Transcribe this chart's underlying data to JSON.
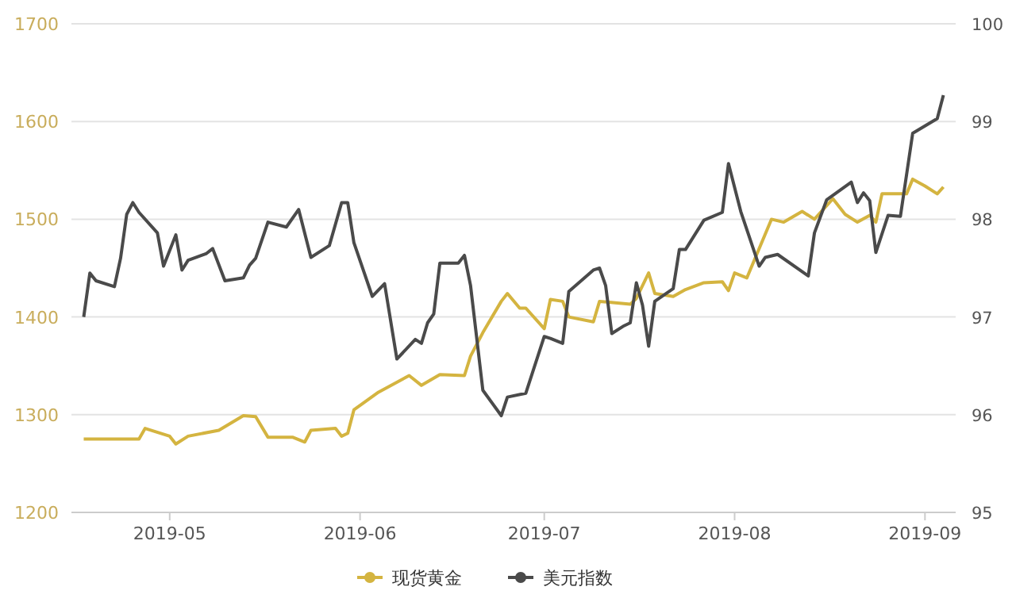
{
  "chart_data": {
    "type": "line",
    "legend": "bottom",
    "grid": "y",
    "xlim": [
      "2019-04-15",
      "2019-09-06"
    ],
    "xticks": [
      {
        "value": "2019-05-01",
        "label": "2019-05"
      },
      {
        "value": "2019-06-01",
        "label": "2019-06"
      },
      {
        "value": "2019-07-01",
        "label": "2019-07"
      },
      {
        "value": "2019-08-01",
        "label": "2019-08"
      },
      {
        "value": "2019-09-01",
        "label": "2019-09"
      }
    ],
    "ylim": [
      1200,
      1700
    ],
    "yticks": [
      1200,
      1300,
      1400,
      1500,
      1600,
      1700
    ],
    "y2lim": [
      95,
      100
    ],
    "y2ticks": [
      95,
      96,
      97,
      98,
      99,
      100
    ],
    "marker": "none",
    "line_style": "solid",
    "series": [
      {
        "name": "现货黄金",
        "color": "#d4b440",
        "x": [
          "2019-04-17",
          "2019-04-22",
          "2019-04-26",
          "2019-04-27",
          "2019-05-01",
          "2019-05-02",
          "2019-05-04",
          "2019-05-09",
          "2019-05-13",
          "2019-05-15",
          "2019-05-17",
          "2019-05-21",
          "2019-05-23",
          "2019-05-24",
          "2019-05-28",
          "2019-05-29",
          "2019-05-30",
          "2019-05-31",
          "2019-06-04",
          "2019-06-09",
          "2019-06-11",
          "2019-06-14",
          "2019-06-18",
          "2019-06-19",
          "2019-06-21",
          "2019-06-24",
          "2019-06-25",
          "2019-06-27",
          "2019-06-28",
          "2019-07-01",
          "2019-07-02",
          "2019-07-04",
          "2019-07-05",
          "2019-07-09",
          "2019-07-10",
          "2019-07-15",
          "2019-07-16",
          "2019-07-18",
          "2019-07-19",
          "2019-07-22",
          "2019-07-24",
          "2019-07-27",
          "2019-07-30",
          "2019-07-31",
          "2019-08-01",
          "2019-08-03",
          "2019-08-07",
          "2019-08-09",
          "2019-08-12",
          "2019-08-14",
          "2019-08-17",
          "2019-08-19",
          "2019-08-21",
          "2019-08-23",
          "2019-08-24",
          "2019-08-25",
          "2019-08-29",
          "2019-08-30",
          "2019-09-01",
          "2019-09-03",
          "2019-09-04"
        ],
        "values": [
          1275,
          1275,
          1275,
          1286,
          1278,
          1270,
          1278,
          1284,
          1299,
          1298,
          1277,
          1277,
          1272,
          1284,
          1286,
          1278,
          1281,
          1305,
          1323,
          1340,
          1330,
          1341,
          1340,
          1360,
          1384,
          1416,
          1424,
          1409,
          1409,
          1388,
          1418,
          1416,
          1400,
          1395,
          1416,
          1413,
          1419,
          1445,
          1424,
          1421,
          1428,
          1435,
          1436,
          1427,
          1445,
          1440,
          1500,
          1497,
          1508,
          1500,
          1521,
          1505,
          1497,
          1504,
          1497,
          1526,
          1526,
          1541,
          1534,
          1526,
          1533
        ]
      },
      {
        "name": "美元指数",
        "color": "#4a4a4a",
        "axis": "y2",
        "x": [
          "2019-04-17",
          "2019-04-18",
          "2019-04-19",
          "2019-04-22",
          "2019-04-23",
          "2019-04-24",
          "2019-04-25",
          "2019-04-26",
          "2019-04-29",
          "2019-04-30",
          "2019-05-02",
          "2019-05-03",
          "2019-05-04",
          "2019-05-07",
          "2019-05-08",
          "2019-05-10",
          "2019-05-13",
          "2019-05-14",
          "2019-05-15",
          "2019-05-17",
          "2019-05-20",
          "2019-05-22",
          "2019-05-24",
          "2019-05-27",
          "2019-05-29",
          "2019-05-30",
          "2019-05-31",
          "2019-06-03",
          "2019-06-05",
          "2019-06-07",
          "2019-06-10",
          "2019-06-11",
          "2019-06-12",
          "2019-06-13",
          "2019-06-14",
          "2019-06-17",
          "2019-06-18",
          "2019-06-19",
          "2019-06-21",
          "2019-06-24",
          "2019-06-25",
          "2019-06-28",
          "2019-07-01",
          "2019-07-02",
          "2019-07-04",
          "2019-07-05",
          "2019-07-09",
          "2019-07-10",
          "2019-07-11",
          "2019-07-12",
          "2019-07-14",
          "2019-07-15",
          "2019-07-16",
          "2019-07-17",
          "2019-07-18",
          "2019-07-19",
          "2019-07-22",
          "2019-07-23",
          "2019-07-24",
          "2019-07-27",
          "2019-07-30",
          "2019-07-31",
          "2019-08-02",
          "2019-08-05",
          "2019-08-06",
          "2019-08-08",
          "2019-08-13",
          "2019-08-14",
          "2019-08-16",
          "2019-08-20",
          "2019-08-21",
          "2019-08-22",
          "2019-08-23",
          "2019-08-24",
          "2019-08-26",
          "2019-08-28",
          "2019-08-30",
          "2019-09-03",
          "2019-09-04"
        ],
        "values": [
          97.0,
          97.45,
          97.37,
          97.31,
          97.6,
          98.05,
          98.17,
          98.07,
          97.86,
          97.52,
          97.84,
          97.48,
          97.58,
          97.65,
          97.7,
          97.37,
          97.4,
          97.53,
          97.6,
          97.97,
          97.92,
          98.1,
          97.61,
          97.73,
          98.17,
          98.17,
          97.76,
          97.21,
          97.34,
          96.57,
          96.77,
          96.73,
          96.94,
          97.03,
          97.55,
          97.55,
          97.63,
          97.32,
          96.25,
          95.99,
          96.18,
          96.22,
          96.8,
          96.78,
          96.73,
          97.26,
          97.48,
          97.5,
          97.32,
          96.83,
          96.91,
          96.94,
          97.35,
          97.12,
          96.7,
          97.16,
          97.29,
          97.69,
          97.69,
          97.99,
          98.07,
          98.57,
          98.08,
          97.52,
          97.61,
          97.64,
          97.42,
          97.86,
          98.2,
          98.38,
          98.17,
          98.27,
          98.19,
          97.66,
          98.04,
          98.03,
          98.88,
          99.03,
          99.27
        ]
      }
    ]
  }
}
